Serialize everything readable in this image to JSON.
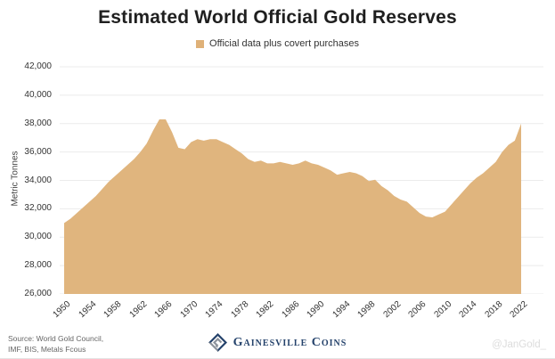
{
  "title": "Estimated World Official Gold Reserves",
  "legend": {
    "label": "Official data plus covert purchases"
  },
  "colors": {
    "area_fill": "#E0B57E",
    "legend_swatch": "#DFB178",
    "gridline": "#ebebeb",
    "brand_navy": "#24426b",
    "brand_gray": "#8d939c"
  },
  "chart_data": {
    "type": "area",
    "title": "Estimated World Official Gold Reserves",
    "ylabel": "Metric Tonnes",
    "series_name": "Official data plus covert purchases",
    "grid": "horizontal",
    "legend_position": "top-center",
    "xlim": [
      1950,
      2023
    ],
    "ylim": [
      26000,
      42000
    ],
    "xticks": [
      1950,
      1954,
      1958,
      1962,
      1966,
      1970,
      1974,
      1978,
      1982,
      1986,
      1990,
      1994,
      1998,
      2002,
      2006,
      2010,
      2014,
      2018,
      2022
    ],
    "yticks": [
      26000,
      28000,
      30000,
      32000,
      34000,
      36000,
      38000,
      40000,
      42000
    ],
    "x": [
      1950,
      1951,
      1952,
      1953,
      1954,
      1955,
      1956,
      1957,
      1958,
      1959,
      1960,
      1961,
      1962,
      1963,
      1964,
      1965,
      1966,
      1967,
      1968,
      1969,
      1970,
      1971,
      1972,
      1973,
      1974,
      1975,
      1976,
      1977,
      1978,
      1979,
      1980,
      1981,
      1982,
      1983,
      1984,
      1985,
      1986,
      1987,
      1988,
      1989,
      1990,
      1991,
      1992,
      1993,
      1994,
      1995,
      1996,
      1997,
      1998,
      1999,
      2000,
      2001,
      2002,
      2003,
      2004,
      2005,
      2006,
      2007,
      2008,
      2009,
      2010,
      2011,
      2012,
      2013,
      2014,
      2015,
      2016,
      2017,
      2018,
      2019,
      2020,
      2021,
      2022
    ],
    "values": [
      31000,
      31300,
      31700,
      32100,
      32500,
      32900,
      33400,
      33900,
      34300,
      34700,
      35100,
      35500,
      36000,
      36600,
      37500,
      38300,
      38300,
      37400,
      36300,
      36200,
      36700,
      36900,
      36800,
      36900,
      36900,
      36700,
      36500,
      36200,
      35900,
      35500,
      35300,
      35400,
      35200,
      35200,
      35300,
      35200,
      35100,
      35200,
      35400,
      35200,
      35100,
      34900,
      34700,
      34400,
      34500,
      34600,
      34500,
      34300,
      33950,
      34050,
      33600,
      33300,
      32900,
      32650,
      32500,
      32100,
      31700,
      31450,
      31400,
      31600,
      31800,
      32300,
      32800,
      33300,
      33800,
      34200,
      34500,
      34900,
      35300,
      36000,
      36500,
      36800,
      38000
    ]
  },
  "footer": {
    "source_line1": "Source: World Gold Council,",
    "source_line2": "IMF, BIS, Metals Fcous",
    "brand": "Gainesville Coins",
    "watermark": "@JanGold_"
  }
}
